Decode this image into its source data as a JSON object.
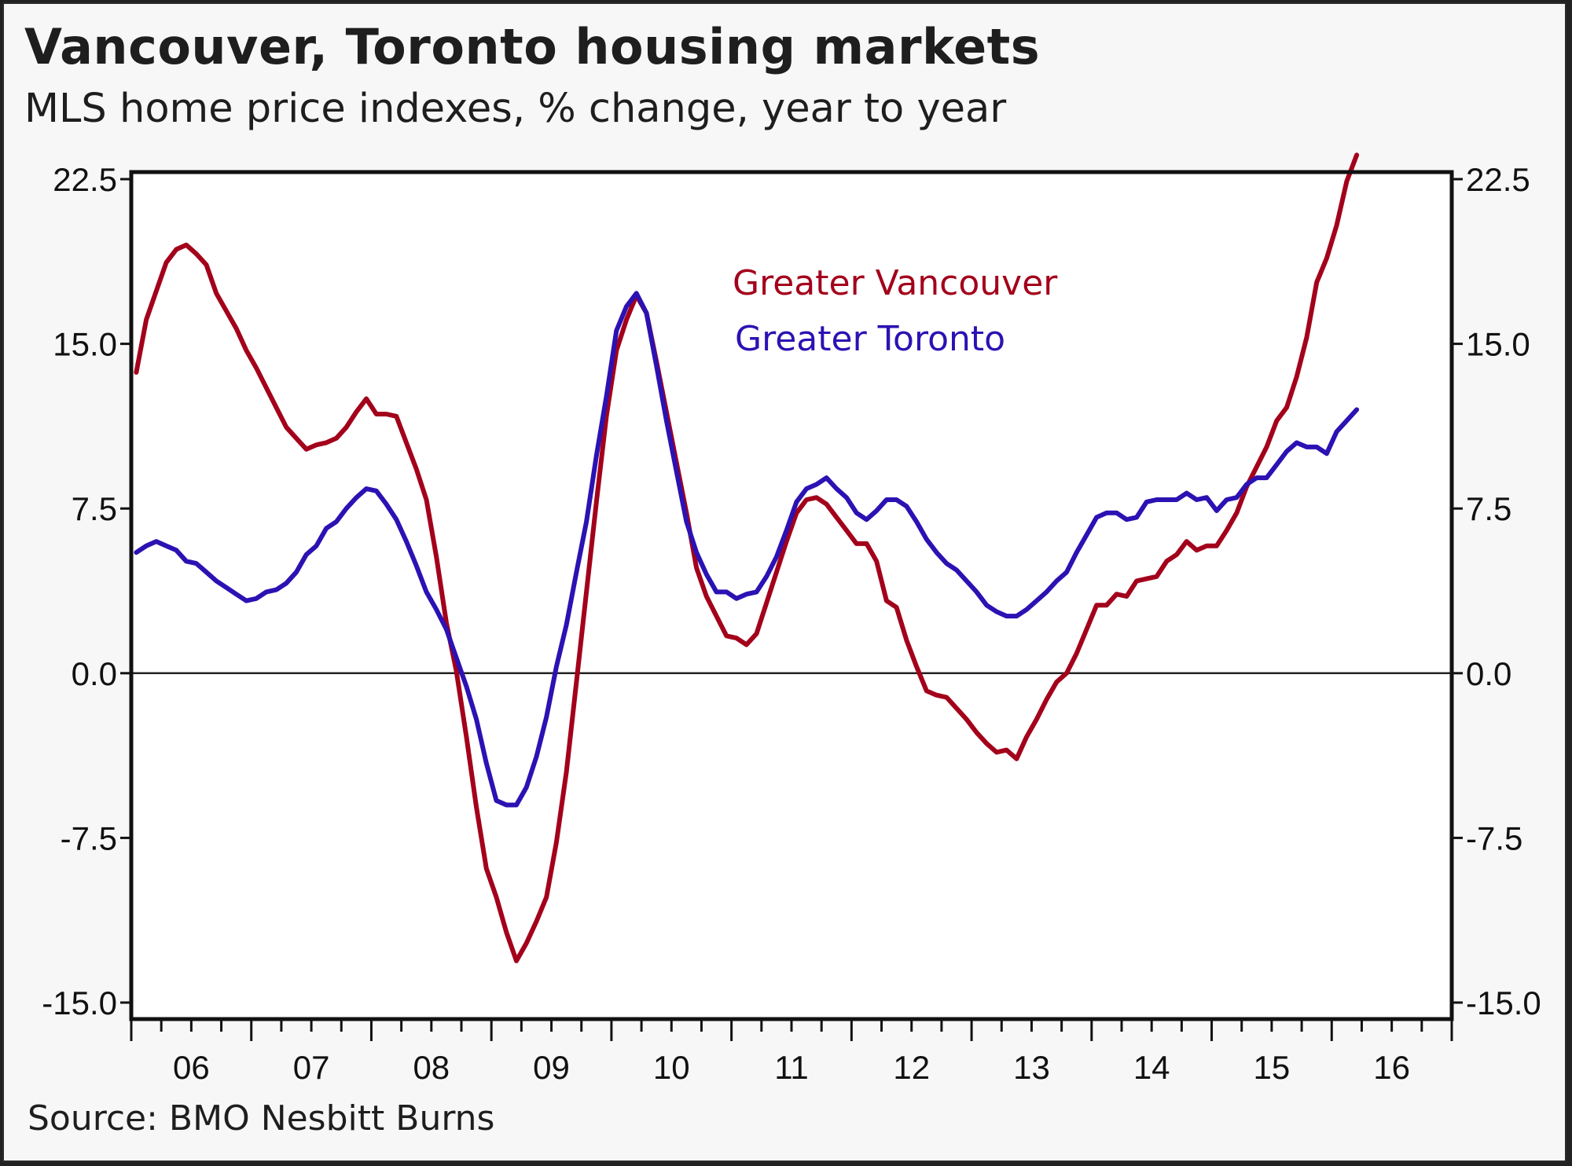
{
  "header": {
    "title": "Vancouver, Toronto housing markets",
    "subtitle": "MLS home price indexes, % change, year to year"
  },
  "footer": {
    "source": "Source: BMO Nesbitt Burns"
  },
  "chart_data": {
    "type": "line",
    "title": "Vancouver, Toronto housing markets",
    "subtitle": "MLS home price indexes, % change, year to year",
    "xlabel": "",
    "ylabel": "% change, year to year",
    "x_unit": "monthly, starting Jan 2006",
    "x_start": "2006-01",
    "x_range": [
      2006,
      2017
    ],
    "ylim": [
      -15.0,
      22.5
    ],
    "y_ticks": [
      "22.5",
      "15.0",
      "7.5",
      "0.0",
      "-7.5",
      "-15.0"
    ],
    "y_tick_values": [
      22.5,
      15.0,
      7.5,
      0.0,
      -7.5,
      -15.0
    ],
    "x_tick_labels": [
      "06",
      "07",
      "08",
      "09",
      "10",
      "11",
      "12",
      "13",
      "14",
      "15",
      "16"
    ],
    "grid": false,
    "zero_line": true,
    "axes": "left and right mirrored",
    "legend_position": "top-center (inside plot)",
    "series": [
      {
        "name": "Greater Vancouver",
        "color": "#a3001b",
        "values": [
          13.7,
          16.1,
          17.4,
          18.7,
          19.3,
          19.5,
          19.1,
          18.6,
          17.3,
          16.5,
          15.7,
          14.7,
          13.9,
          13.0,
          12.1,
          11.2,
          10.7,
          10.2,
          10.4,
          10.5,
          10.7,
          11.2,
          11.9,
          12.5,
          11.8,
          11.8,
          11.7,
          10.5,
          9.3,
          7.9,
          5.3,
          2.3,
          0.1,
          -2.9,
          -6.1,
          -8.9,
          -10.2,
          -11.8,
          -13.1,
          -12.3,
          -11.3,
          -10.2,
          -7.7,
          -4.5,
          -0.4,
          3.7,
          7.8,
          11.7,
          14.7,
          16.1,
          17.2,
          16.4,
          14.2,
          11.9,
          9.6,
          7.3,
          4.8,
          3.5,
          2.6,
          1.7,
          1.6,
          1.3,
          1.8,
          3.2,
          4.6,
          6.0,
          7.3,
          7.9,
          8.0,
          7.7,
          7.1,
          6.5,
          5.9,
          5.9,
          5.1,
          3.3,
          3.0,
          1.5,
          0.3,
          -0.8,
          -1.0,
          -1.1,
          -1.6,
          -2.1,
          -2.7,
          -3.2,
          -3.6,
          -3.5,
          -3.9,
          -2.9,
          -2.1,
          -1.2,
          -0.4,
          0.0,
          0.9,
          2.0,
          3.1,
          3.1,
          3.6,
          3.5,
          4.2,
          4.3,
          4.4,
          5.1,
          5.4,
          6.0,
          5.6,
          5.8,
          5.8,
          6.5,
          7.3,
          8.5,
          9.4,
          10.3,
          11.5,
          12.1,
          13.5,
          15.3,
          17.8,
          18.9,
          20.4,
          22.4,
          23.6
        ]
      },
      {
        "name": "Greater Toronto",
        "color": "#2b12b3",
        "values": [
          5.5,
          5.8,
          6.0,
          5.8,
          5.6,
          5.1,
          5.0,
          4.6,
          4.2,
          3.9,
          3.6,
          3.3,
          3.4,
          3.7,
          3.8,
          4.1,
          4.6,
          5.4,
          5.8,
          6.6,
          6.9,
          7.5,
          8.0,
          8.4,
          8.3,
          7.7,
          7.0,
          6.0,
          4.9,
          3.7,
          2.9,
          2.0,
          0.7,
          -0.6,
          -2.1,
          -4.1,
          -5.8,
          -6.0,
          -6.0,
          -5.2,
          -3.8,
          -2.0,
          0.3,
          2.2,
          4.6,
          6.9,
          9.9,
          12.6,
          15.6,
          16.7,
          17.3,
          16.4,
          14.0,
          11.5,
          9.2,
          6.9,
          5.5,
          4.5,
          3.7,
          3.7,
          3.4,
          3.6,
          3.7,
          4.4,
          5.3,
          6.5,
          7.8,
          8.4,
          8.6,
          8.9,
          8.4,
          8.0,
          7.3,
          7.0,
          7.4,
          7.9,
          7.9,
          7.6,
          6.9,
          6.1,
          5.5,
          5.0,
          4.7,
          4.2,
          3.7,
          3.1,
          2.8,
          2.6,
          2.6,
          2.9,
          3.3,
          3.7,
          4.2,
          4.6,
          5.5,
          6.3,
          7.1,
          7.3,
          7.3,
          7.0,
          7.1,
          7.8,
          7.9,
          7.9,
          7.9,
          8.2,
          7.9,
          8.0,
          7.4,
          7.9,
          8.0,
          8.6,
          8.9,
          8.9,
          9.5,
          10.1,
          10.5,
          10.3,
          10.3,
          10.0,
          11.0,
          11.5,
          12.0
        ]
      }
    ]
  }
}
